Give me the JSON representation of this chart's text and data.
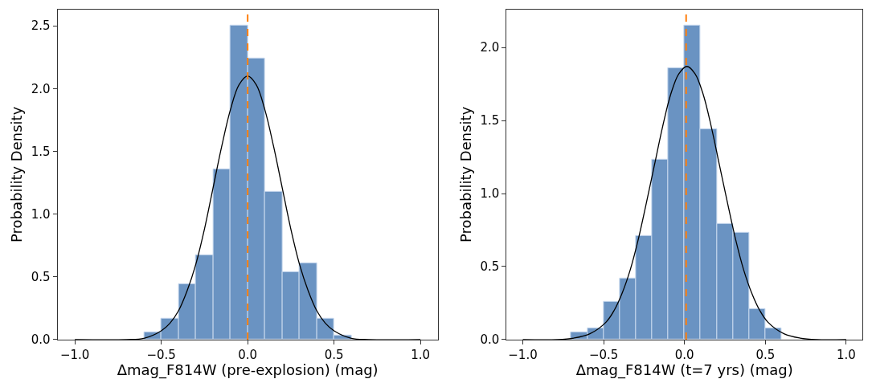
{
  "chart_data": [
    {
      "type": "histogram",
      "xlabel": "Δmag_F814W (pre-explosion) (mag)",
      "ylabel": "Probability Density",
      "color": "#6a93c2",
      "bins": [
        -0.6,
        -0.5,
        -0.4,
        -0.3,
        -0.2,
        -0.1,
        0.0,
        0.1,
        0.2,
        0.3,
        0.4,
        0.5,
        0.6
      ],
      "values": [
        0.06,
        0.17,
        0.44,
        0.67,
        1.36,
        2.5,
        2.24,
        1.18,
        0.54,
        0.61,
        0.17,
        0.03
      ],
      "series": [
        {
          "type": "line",
          "color": "#000000",
          "x": [
            -1.0,
            -0.7,
            -0.6,
            -0.5,
            -0.45,
            -0.4,
            -0.35,
            -0.3,
            -0.25,
            -0.2,
            -0.15,
            -0.1,
            -0.05,
            0.0,
            0.05,
            0.1,
            0.15,
            0.2,
            0.25,
            0.3,
            0.35,
            0.4,
            0.45,
            0.5,
            0.6,
            0.7,
            1.0
          ],
          "values": [
            0.0,
            0.0,
            0.01,
            0.07,
            0.13,
            0.23,
            0.39,
            0.6,
            0.88,
            1.21,
            1.54,
            1.83,
            2.03,
            2.1,
            2.03,
            1.83,
            1.54,
            1.21,
            0.88,
            0.6,
            0.39,
            0.23,
            0.13,
            0.07,
            0.01,
            0.0,
            0.0
          ]
        }
      ],
      "ref_lines": [
        {
          "axis": "x",
          "value": 0.0,
          "color": "#ff7f0e",
          "line_style": "dashed"
        }
      ],
      "xlim": [
        -1.1,
        1.1
      ],
      "ylim": [
        0,
        2.63
      ],
      "xticks": [
        {
          "value": -1.0,
          "label": "−1.0"
        },
        {
          "value": -0.5,
          "label": "−0.5"
        },
        {
          "value": 0.0,
          "label": "0.0"
        },
        {
          "value": 0.5,
          "label": "0.5"
        },
        {
          "value": 1.0,
          "label": "1.0"
        }
      ],
      "yticks": [
        {
          "value": 0,
          "label": "0.0"
        },
        0.5,
        {
          "value": 1,
          "label": "1.0"
        },
        1.5,
        {
          "value": 2,
          "label": "2.0"
        },
        2.5
      ]
    },
    {
      "type": "histogram",
      "xlabel": "Δmag_F814W (t=7 yrs) (mag)",
      "ylabel": "Probability Density",
      "color": "#6a93c2",
      "bins": [
        -0.7,
        -0.6,
        -0.5,
        -0.4,
        -0.3,
        -0.2,
        -0.1,
        0.0,
        0.1,
        0.2,
        0.3,
        0.4,
        0.5,
        0.6
      ],
      "values": [
        0.05,
        0.075,
        0.26,
        0.42,
        0.71,
        1.23,
        1.86,
        2.15,
        1.44,
        0.79,
        0.73,
        0.21,
        0.08
      ],
      "series": [
        {
          "type": "line",
          "color": "#000000",
          "x": [
            -1.0,
            -0.785,
            -0.685,
            -0.585,
            -0.485,
            -0.435,
            -0.385,
            -0.335,
            -0.285,
            -0.235,
            -0.185,
            -0.135,
            -0.085,
            -0.035,
            0.015,
            0.065,
            0.115,
            0.165,
            0.215,
            0.265,
            0.315,
            0.365,
            0.415,
            0.465,
            0.515,
            0.615,
            0.715,
            0.815,
            1.0
          ],
          "values": [
            0.0,
            0.0,
            0.01,
            0.04,
            0.12,
            0.2,
            0.32,
            0.48,
            0.69,
            0.94,
            1.2,
            1.46,
            1.68,
            1.82,
            1.87,
            1.82,
            1.68,
            1.46,
            1.2,
            0.94,
            0.69,
            0.48,
            0.32,
            0.2,
            0.12,
            0.04,
            0.01,
            0.0,
            0.0
          ]
        }
      ],
      "ref_lines": [
        {
          "axis": "x",
          "value": 0.01,
          "color": "#ff7f0e",
          "line_style": "dashed"
        }
      ],
      "xlim": [
        -1.1,
        1.1
      ],
      "ylim": [
        0,
        2.26
      ],
      "xticks": [
        {
          "value": -1.0,
          "label": "−1.0"
        },
        {
          "value": -0.5,
          "label": "−0.5"
        },
        {
          "value": 0.0,
          "label": "0.0"
        },
        {
          "value": 0.5,
          "label": "0.5"
        },
        {
          "value": 1.0,
          "label": "1.0"
        }
      ],
      "yticks": [
        {
          "value": 0,
          "label": "0.0"
        },
        0.5,
        {
          "value": 1,
          "label": "1.0"
        },
        1.5,
        {
          "value": 2,
          "label": "2.0"
        }
      ]
    }
  ]
}
